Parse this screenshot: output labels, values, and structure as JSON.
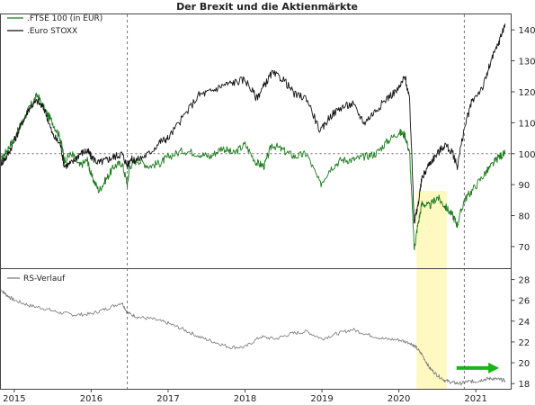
{
  "chart_data": [
    {
      "type": "line",
      "title": "Der Brexit und die Aktienmärkte",
      "x_tick_labels": [
        "2015",
        "2016",
        "2017",
        "2018",
        "2019",
        "2020",
        "2021"
      ],
      "ylim": [
        63,
        145
      ],
      "y_ticks": [
        70,
        80,
        90,
        100,
        110,
        120,
        130,
        140
      ],
      "reference_line": 100,
      "grid": false,
      "legend": "top-left",
      "series": [
        {
          "name": ".FTSE 100 (in EUR)",
          "color": "#1a7a1a",
          "x": [
            2014.83,
            2014.9,
            2015.0,
            2015.1,
            2015.2,
            2015.3,
            2015.4,
            2015.5,
            2015.6,
            2015.65,
            2015.75,
            2015.85,
            2015.95,
            2016.0,
            2016.1,
            2016.2,
            2016.3,
            2016.4,
            2016.47,
            2016.5,
            2016.6,
            2016.75,
            2016.9,
            2017.0,
            2017.2,
            2017.4,
            2017.55,
            2017.7,
            2017.85,
            2018.0,
            2018.15,
            2018.25,
            2018.35,
            2018.5,
            2018.65,
            2018.8,
            2018.98,
            2019.1,
            2019.25,
            2019.4,
            2019.55,
            2019.7,
            2019.85,
            2020.0,
            2020.08,
            2020.14,
            2020.2,
            2020.24,
            2020.3,
            2020.4,
            2020.5,
            2020.6,
            2020.7,
            2020.76,
            2020.85,
            2020.95,
            2021.1,
            2021.2,
            2021.3,
            2021.38
          ],
          "values": [
            98,
            101,
            105,
            110,
            115,
            119,
            114,
            110,
            105,
            98,
            100,
            96,
            98,
            93,
            88,
            92,
            96,
            97,
            90,
            96,
            98,
            96,
            97,
            99,
            101,
            100,
            99,
            102,
            100,
            103,
            97,
            96,
            103,
            101,
            99,
            100,
            90,
            95,
            98,
            98,
            99,
            100,
            104,
            107,
            106,
            100,
            69,
            76,
            84,
            83,
            86,
            83,
            80,
            77,
            85,
            88,
            93,
            96,
            99,
            100
          ]
        },
        {
          "name": ".Euro STOXX",
          "color": "#111111",
          "x": [
            2014.83,
            2014.9,
            2015.0,
            2015.1,
            2015.2,
            2015.3,
            2015.4,
            2015.5,
            2015.6,
            2015.65,
            2015.75,
            2015.85,
            2015.95,
            2016.0,
            2016.1,
            2016.2,
            2016.3,
            2016.4,
            2016.47,
            2016.5,
            2016.6,
            2016.75,
            2016.9,
            2017.0,
            2017.2,
            2017.4,
            2017.55,
            2017.7,
            2017.85,
            2018.0,
            2018.15,
            2018.25,
            2018.35,
            2018.5,
            2018.65,
            2018.8,
            2018.98,
            2019.1,
            2019.25,
            2019.4,
            2019.55,
            2019.7,
            2019.85,
            2020.0,
            2020.08,
            2020.14,
            2020.2,
            2020.24,
            2020.3,
            2020.4,
            2020.5,
            2020.6,
            2020.7,
            2020.76,
            2020.85,
            2020.95,
            2021.1,
            2021.2,
            2021.3,
            2021.38
          ],
          "values": [
            97,
            99,
            104,
            110,
            115,
            117,
            114,
            106,
            103,
            96,
            97,
            100,
            101,
            99,
            97,
            98,
            99,
            100,
            96,
            98,
            98,
            100,
            104,
            105,
            112,
            119,
            120,
            122,
            123,
            124,
            118,
            122,
            126,
            124,
            119,
            118,
            107,
            112,
            115,
            116,
            110,
            114,
            118,
            121,
            125,
            117,
            78,
            82,
            92,
            97,
            100,
            103,
            100,
            96,
            108,
            117,
            122,
            130,
            136,
            142
          ]
        }
      ],
      "annotation": {
        "type": "highlight_band",
        "x_range": [
          2020.23,
          2020.62
        ],
        "y_range": [
          63,
          88
        ],
        "color": "#fff8c0"
      }
    },
    {
      "type": "line",
      "ylim": [
        17.5,
        29
      ],
      "y_ticks": [
        18,
        20,
        22,
        24,
        26,
        28
      ],
      "series": [
        {
          "name": "RS-Verlauf",
          "color": "#777777",
          "x": [
            2014.83,
            2014.9,
            2015.0,
            2015.2,
            2015.4,
            2015.6,
            2015.8,
            2016.0,
            2016.2,
            2016.4,
            2016.47,
            2016.6,
            2016.8,
            2017.0,
            2017.2,
            2017.4,
            2017.6,
            2017.8,
            2018.0,
            2018.2,
            2018.4,
            2018.6,
            2018.8,
            2019.0,
            2019.2,
            2019.4,
            2019.6,
            2019.8,
            2020.0,
            2020.15,
            2020.22,
            2020.3,
            2020.4,
            2020.5,
            2020.6,
            2020.7,
            2020.8,
            2020.9,
            2021.0,
            2021.1,
            2021.2,
            2021.3,
            2021.38
          ],
          "values": [
            27.0,
            26.5,
            26.0,
            25.5,
            25.2,
            24.8,
            24.6,
            24.7,
            25.2,
            25.8,
            24.8,
            24.4,
            24.2,
            23.8,
            23.2,
            22.5,
            22.0,
            21.5,
            21.5,
            22.5,
            22.3,
            22.8,
            23.0,
            22.3,
            22.8,
            23.2,
            22.7,
            22.3,
            22.2,
            21.9,
            21.5,
            20.8,
            19.5,
            18.8,
            18.3,
            18.1,
            18.0,
            18.2,
            18.2,
            18.4,
            18.5,
            18.4,
            18.3
          ]
        }
      ],
      "annotation": {
        "type": "arrow",
        "direction": "right",
        "color": "#19b519",
        "x_range": [
          2020.75,
          2021.28
        ],
        "y": 19.5
      }
    }
  ]
}
